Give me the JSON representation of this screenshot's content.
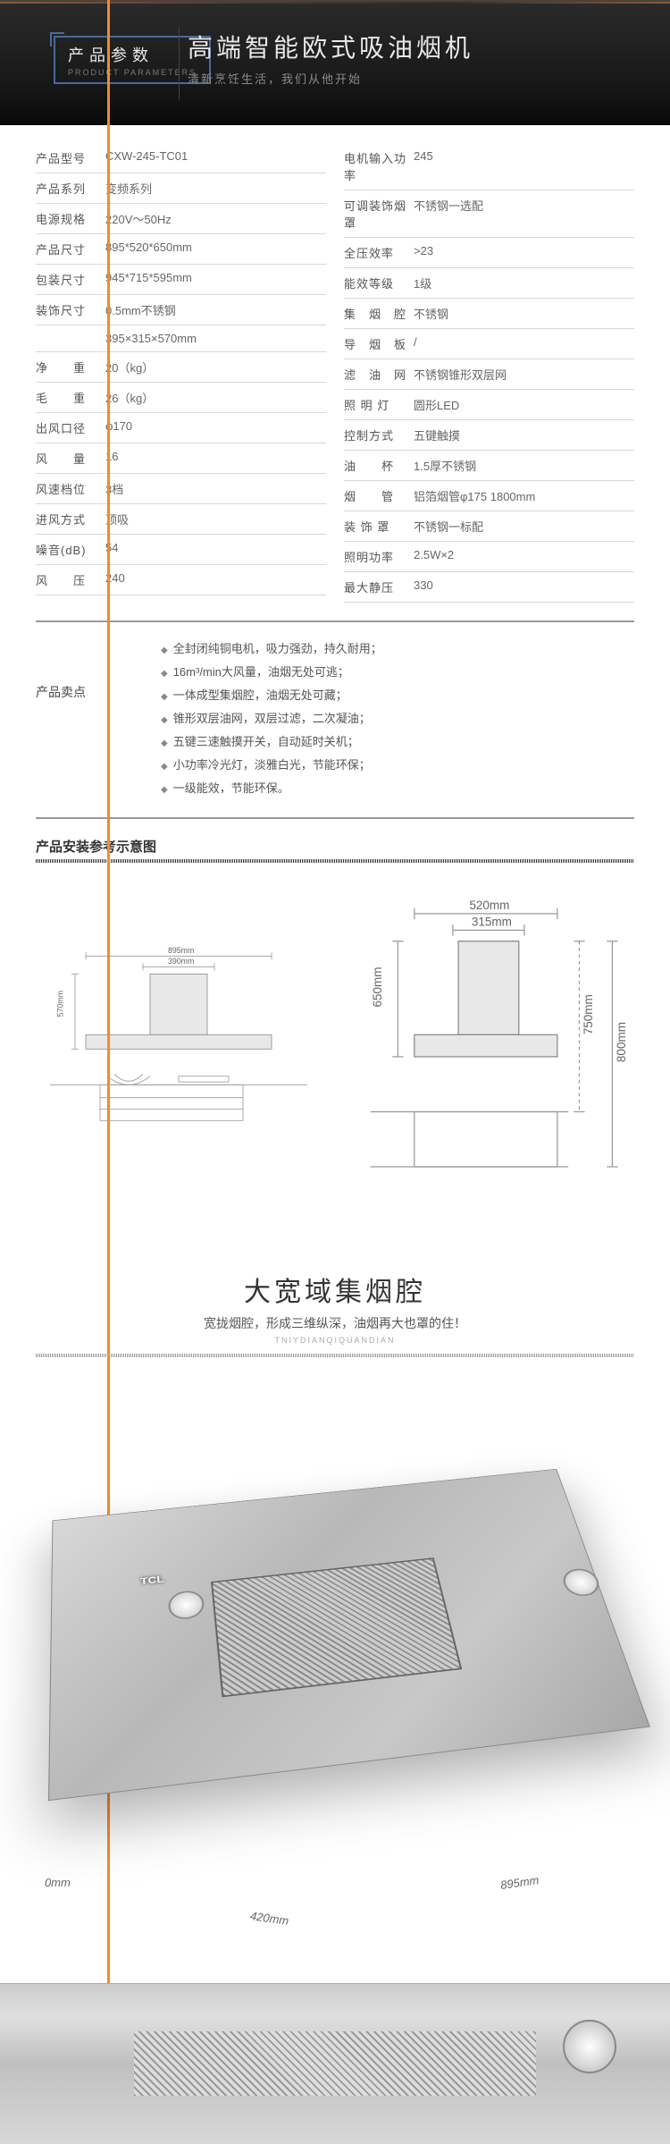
{
  "header": {
    "badge_cn": "产品参数",
    "badge_en": "PRODUCT PARAMETERS",
    "title": "高端智能欧式吸油烟机",
    "subtitle": "清新烹饪生活，我们从他开始"
  },
  "specs_left": [
    {
      "k": "产品型号",
      "v": "CXW-245-TC01"
    },
    {
      "k": "产品系列",
      "v": "变频系列"
    },
    {
      "k": "电源规格",
      "v": "220V～50Hz"
    },
    {
      "k": "产品尺寸",
      "v": "895*520*650mm"
    },
    {
      "k": "包装尺寸",
      "v": "945*715*595mm"
    },
    {
      "k": "装饰尺寸",
      "v": "0.5mm不锈钢"
    },
    {
      "k": "",
      "v": "395×315×570mm"
    },
    {
      "k": "净　　重",
      "v": "20（kg）"
    },
    {
      "k": "毛　　重",
      "v": "26（kg）"
    },
    {
      "k": "出风口径",
      "v": "φ170"
    },
    {
      "k": "风　　量",
      "v": "16"
    },
    {
      "k": "风速档位",
      "v": "3档"
    },
    {
      "k": "进风方式",
      "v": "顶吸"
    },
    {
      "k": "噪音(dB)",
      "v": "54"
    },
    {
      "k": "风　　压",
      "v": "240"
    }
  ],
  "specs_right": [
    {
      "k": "电机输入功率",
      "v": "245"
    },
    {
      "k": "可调装饰烟罩",
      "v": "不锈钢一选配"
    },
    {
      "k": "全压效率",
      "v": ">23"
    },
    {
      "k": "能效等级",
      "v": "1级"
    },
    {
      "k": "集　烟　腔",
      "v": "不锈钢"
    },
    {
      "k": "导　烟　板",
      "v": "/"
    },
    {
      "k": "滤　油　网",
      "v": "不锈钢锥形双层网"
    },
    {
      "k": "照 明 灯",
      "v": "圆形LED"
    },
    {
      "k": "控制方式",
      "v": "五键触摸"
    },
    {
      "k": "油　　杯",
      "v": "1.5厚不锈钢"
    },
    {
      "k": "烟　　管",
      "v": "铝箔烟管φ175 1800mm"
    },
    {
      "k": "装 饰 罩",
      "v": "不锈钢一标配"
    },
    {
      "k": "照明功率",
      "v": "2.5W×2"
    },
    {
      "k": "最大静压",
      "v": "330"
    }
  ],
  "sell": {
    "label": "产品卖点",
    "items": [
      "全封闭纯铜电机，吸力强劲，持久耐用；",
      "16m³/min大风量，油烟无处可逃；",
      "一体成型集烟腔，油烟无处可藏；",
      "锥形双层油网，双层过滤，二次凝油；",
      "五键三速触摸开关，自动延时关机；",
      "小功率冷光灯，淡雅白光，节能环保；",
      "一级能效，节能环保。"
    ]
  },
  "install": {
    "title": "产品安装参考示意图",
    "dims": {
      "w895": "895mm",
      "w390": "390mm",
      "h570": "570mm",
      "w520": "520mm",
      "w315": "315mm",
      "h650": "650mm",
      "h750": "750mm",
      "h800": "800mm"
    }
  },
  "feature": {
    "title": "大宽域集烟腔",
    "subtitle": "宽拢烟腔，形成三维纵深，油烟再大也罩的住！",
    "pinyin": "TNIYDIANQIQUANDIAN"
  },
  "render": {
    "brand": "TCL",
    "dim0": "0mm",
    "dim420": "420mm",
    "dim895": "895mm"
  },
  "colors": {
    "hdr_bg": "#1a1a1a",
    "badge_border": "#4a6a9a",
    "line": "#d8d8d8",
    "accent": "#f28c28",
    "text": "#444",
    "metal": "#c0c0c0"
  }
}
